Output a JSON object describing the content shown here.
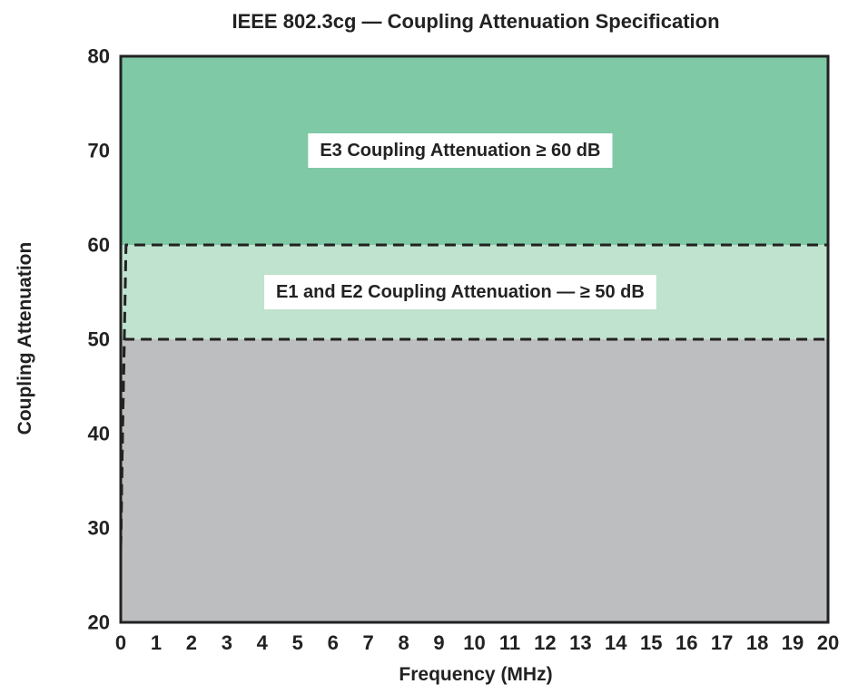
{
  "chart_data": {
    "type": "area",
    "title": "IEEE 802.3cg — Coupling Attenuation Specification",
    "xlabel": "Frequency (MHz)",
    "ylabel": "Coupling Attenuation",
    "xlim": [
      0,
      20
    ],
    "ylim": [
      20,
      80
    ],
    "xticks": [
      "0",
      "1",
      "2",
      "3",
      "4",
      "5",
      "6",
      "7",
      "8",
      "9",
      "10",
      "11",
      "12",
      "13",
      "14",
      "15",
      "16",
      "17",
      "18",
      "19",
      "20"
    ],
    "yticks": [
      "20",
      "30",
      "40",
      "50",
      "60",
      "70",
      "80"
    ],
    "grid": false,
    "regions": [
      {
        "name": "below-spec",
        "y_from": 20,
        "y_to": 50,
        "color": "#bdbec0"
      },
      {
        "name": "e1-e2",
        "y_from": 50,
        "y_to": 60,
        "color": "#bfe3cf"
      },
      {
        "name": "e3",
        "y_from": 60,
        "y_to": 80,
        "color": "#7fc9a7"
      }
    ],
    "series": [
      {
        "line_style": "dashed",
        "x": [
          0,
          0.05,
          0.1,
          20
        ],
        "y": [
          28,
          40,
          50,
          50
        ]
      },
      {
        "line_style": "dashed",
        "x": [
          0,
          0.05,
          0.1,
          0.15,
          20
        ],
        "y": [
          28,
          40,
          50,
          60,
          60
        ]
      }
    ],
    "annotations": [
      {
        "text": "E3 Coupling Attenuation ≥ 60 dB",
        "x": 9.6,
        "y": 70
      },
      {
        "text": "E1 and E2 Coupling Attenuation — ≥ 50 dB",
        "x": 9.6,
        "y": 55
      }
    ]
  }
}
